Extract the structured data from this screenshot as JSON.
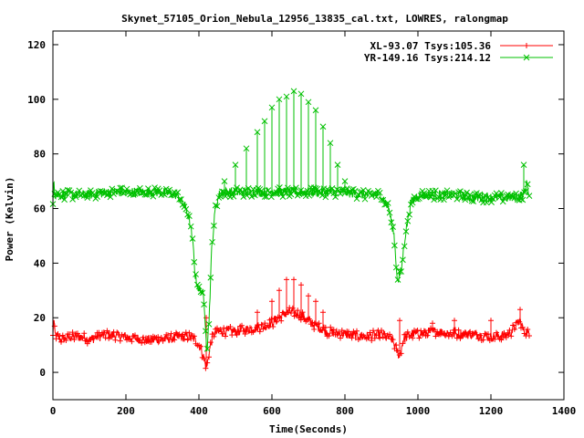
{
  "chart_data": {
    "type": "line",
    "title": "Skynet_57105_Orion_Nebula_12956_13835_cal.txt, LOWRES, ralongmap",
    "xlabel": "Time(Seconds)",
    "ylabel": "Power (Kelvin)",
    "xlim": [
      0,
      1400
    ],
    "ylim": [
      -10,
      125
    ],
    "xticks": [
      0,
      200,
      400,
      600,
      800,
      1000,
      1200,
      1400
    ],
    "yticks": [
      0,
      20,
      40,
      60,
      80,
      100,
      120
    ],
    "grid": false,
    "legend_position": "top-right",
    "series": [
      {
        "name": "XL-93.07 Tsys:105.36",
        "color": "#ff0000",
        "marker": "plus",
        "x": [
          0,
          2,
          5,
          20,
          50,
          80,
          100,
          150,
          200,
          250,
          300,
          350,
          380,
          395,
          405,
          412,
          418,
          422,
          426,
          432,
          440,
          460,
          500,
          540,
          580,
          600,
          620,
          640,
          660,
          680,
          700,
          720,
          750,
          800,
          850,
          900,
          930,
          945,
          950,
          960,
          980,
          1000,
          1050,
          1100,
          1150,
          1200,
          1250,
          1280,
          1290,
          1300,
          1305
        ],
        "y": [
          13,
          21,
          14,
          12,
          13,
          13,
          12,
          14,
          13,
          12,
          12,
          13,
          13,
          11,
          9,
          6,
          3,
          2,
          6,
          10,
          14,
          15,
          15,
          16,
          17,
          18,
          20,
          22,
          22,
          21,
          19,
          17,
          15,
          14,
          13,
          14,
          12,
          7,
          6,
          12,
          14,
          14,
          15,
          14,
          14,
          13,
          14,
          19,
          15,
          15,
          13
        ],
        "spike_tops": [
          [
            340,
            14
          ],
          [
            420,
            20
          ],
          [
            560,
            22
          ],
          [
            600,
            26
          ],
          [
            620,
            30
          ],
          [
            640,
            34
          ],
          [
            660,
            34
          ],
          [
            680,
            32
          ],
          [
            700,
            28
          ],
          [
            720,
            26
          ],
          [
            740,
            22
          ],
          [
            950,
            19
          ],
          [
            1040,
            18
          ],
          [
            1100,
            19
          ],
          [
            1200,
            19
          ],
          [
            1280,
            23
          ]
        ],
        "noise_amplitude": 1.8
      },
      {
        "name": "YR-149.16 Tsys:214.12",
        "color": "#00c000",
        "marker": "x",
        "x": [
          0,
          2,
          5,
          20,
          50,
          80,
          100,
          150,
          200,
          250,
          300,
          340,
          355,
          365,
          375,
          385,
          390,
          400,
          410,
          418,
          422,
          428,
          435,
          445,
          455,
          470,
          500,
          550,
          600,
          650,
          700,
          750,
          800,
          850,
          900,
          920,
          935,
          940,
          945,
          955,
          965,
          980,
          1000,
          1050,
          1100,
          1150,
          1200,
          1250,
          1290,
          1300,
          1305
        ],
        "y": [
          62,
          74,
          65,
          65,
          65,
          65,
          65,
          66,
          66,
          66,
          66,
          65,
          62,
          60,
          55,
          45,
          35,
          30,
          30,
          18,
          8,
          20,
          45,
          60,
          65,
          66,
          66,
          66,
          66,
          66,
          66,
          66,
          66,
          65,
          65,
          60,
          50,
          40,
          33,
          38,
          50,
          62,
          65,
          65,
          65,
          64,
          64,
          64,
          65,
          70,
          64
        ],
        "spike_tops": [
          [
            470,
            70
          ],
          [
            500,
            76
          ],
          [
            530,
            82
          ],
          [
            560,
            88
          ],
          [
            580,
            92
          ],
          [
            600,
            97
          ],
          [
            620,
            100
          ],
          [
            640,
            101
          ],
          [
            660,
            103
          ],
          [
            680,
            102
          ],
          [
            700,
            99
          ],
          [
            720,
            96
          ],
          [
            740,
            90
          ],
          [
            760,
            84
          ],
          [
            780,
            76
          ],
          [
            800,
            70
          ],
          [
            1290,
            76
          ]
        ],
        "noise_amplitude": 1.8
      }
    ]
  }
}
